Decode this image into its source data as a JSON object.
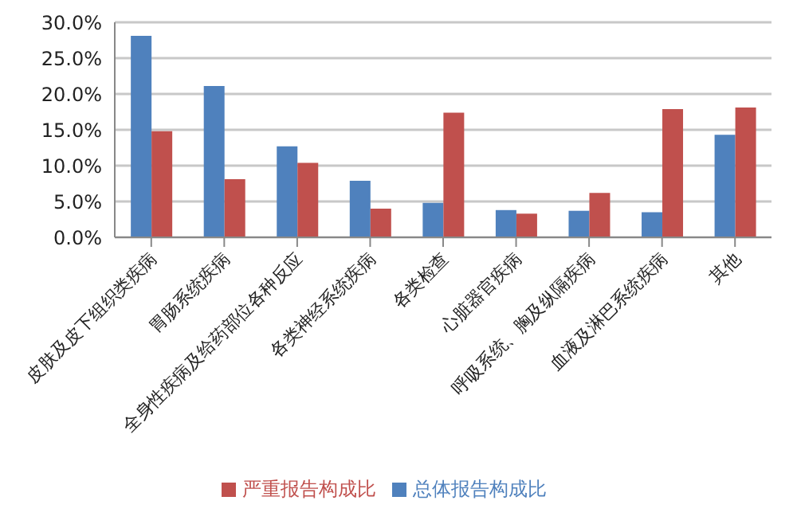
{
  "chart_data": {
    "type": "bar",
    "categories": [
      "皮肤及皮下组织类疾病",
      "胃肠系统疾病",
      "全身性疾病及给药部位各种反应",
      "各类神经系统疾病",
      "各类检查",
      "心脏器官疾病",
      "呼吸系统、胸及纵隔疾病",
      "血液及淋巴系统疾病",
      "其他"
    ],
    "series": [
      {
        "name": "总体报告构成比",
        "color": "#4f81bd",
        "values": [
          28.1,
          21.1,
          12.7,
          7.9,
          4.8,
          3.8,
          3.7,
          3.5,
          14.3
        ]
      },
      {
        "name": "严重报告构成比",
        "color": "#c0504d",
        "values": [
          14.8,
          8.1,
          10.4,
          4.0,
          17.4,
          3.3,
          6.2,
          17.9,
          18.1
        ]
      }
    ],
    "ylim": [
      0,
      30
    ],
    "yticks": [
      {
        "value": 0,
        "label": "0.0%"
      },
      {
        "value": 5,
        "label": "5.0%"
      },
      {
        "value": 10,
        "label": "10.0%"
      },
      {
        "value": 15,
        "label": "15.0%"
      },
      {
        "value": 20,
        "label": "20.0%"
      },
      {
        "value": 25,
        "label": "25.0%"
      },
      {
        "value": 30,
        "label": "30.0%"
      }
    ],
    "grid": "y",
    "legend": "bottom"
  }
}
